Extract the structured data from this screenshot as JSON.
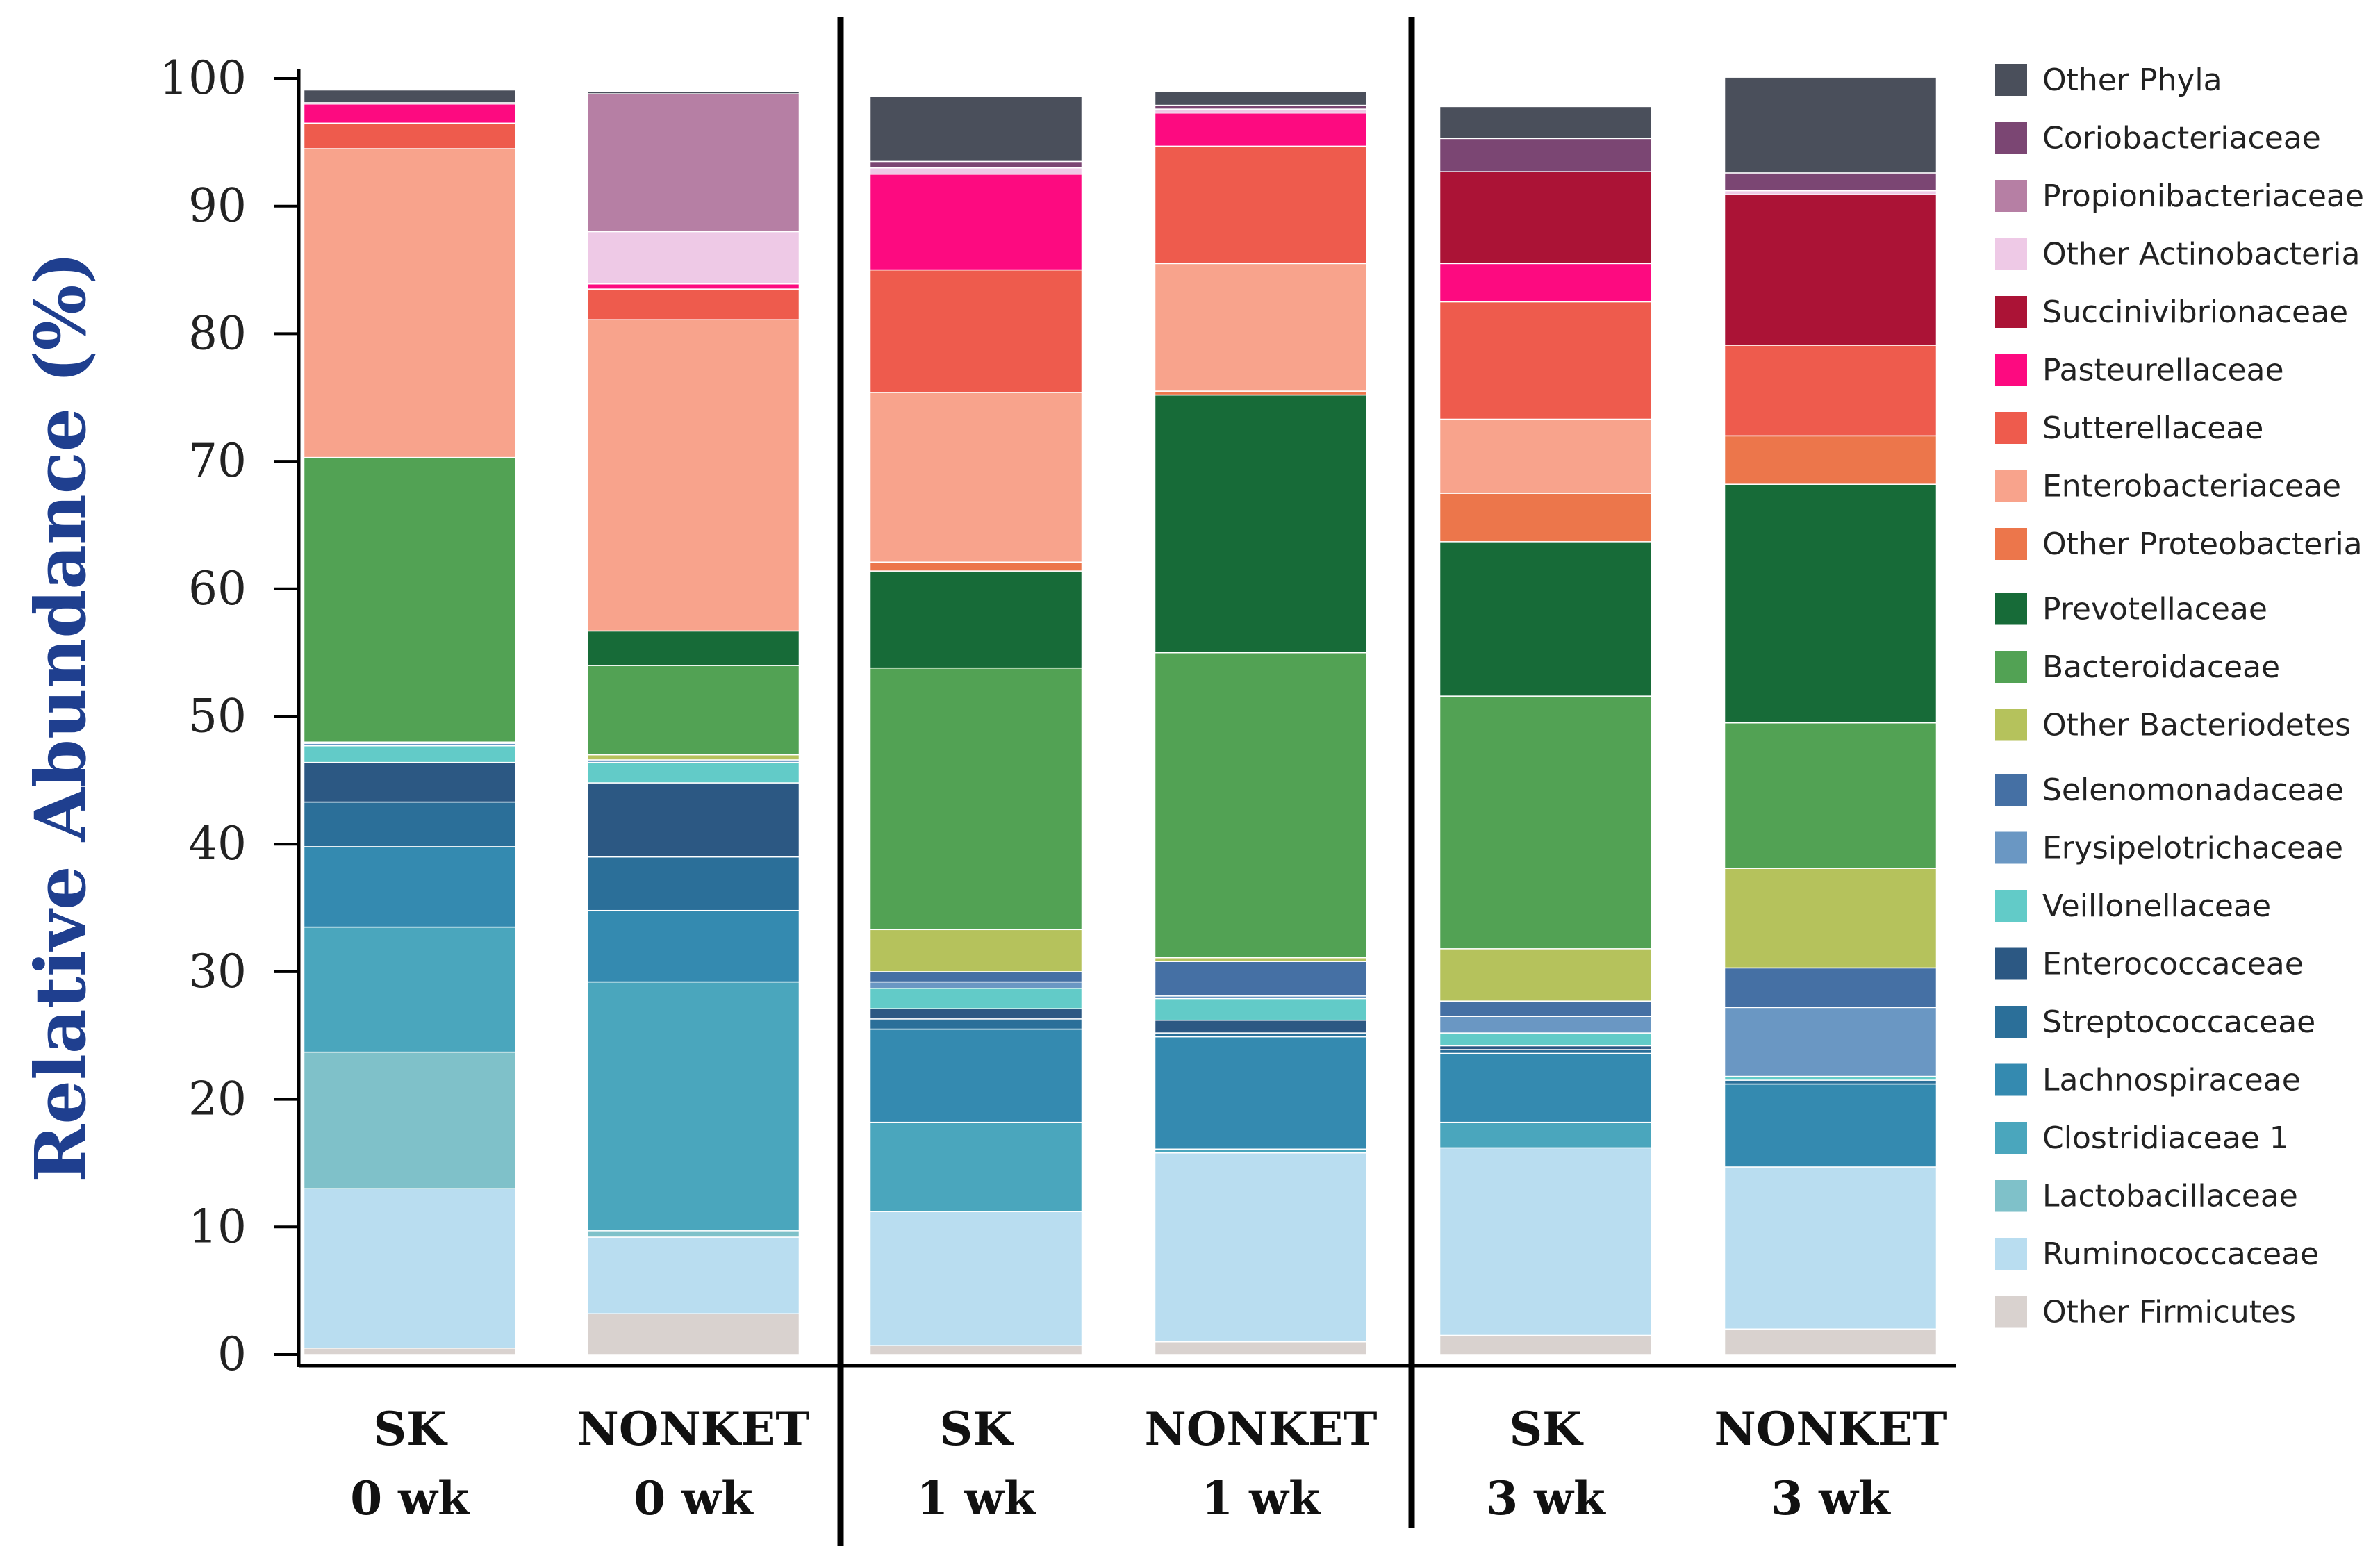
{
  "chart_data": {
    "type": "bar",
    "stacked": true,
    "title": "",
    "xlabel": "",
    "ylabel": "Relative Abundance (%)",
    "ylim": [
      0,
      100
    ],
    "yticks": [
      "0",
      "10",
      "20",
      "30",
      "40",
      "50",
      "60",
      "70",
      "80",
      "90",
      "100"
    ],
    "legend_position": "right",
    "categories": [
      {
        "group": "SK",
        "time": "0 wk"
      },
      {
        "group": "NONKET",
        "time": "0 wk"
      },
      {
        "group": "SK",
        "time": "1 wk"
      },
      {
        "group": "NONKET",
        "time": "1 wk"
      },
      {
        "group": "SK",
        "time": "3 wk"
      },
      {
        "group": "NONKET",
        "time": "3 wk"
      }
    ],
    "series": [
      {
        "name": "Other Firmicutes",
        "color": "#d9d2cf",
        "values": [
          0.5,
          3.2,
          0.7,
          1.0,
          1.5,
          2.0
        ]
      },
      {
        "name": "Ruminococcaceae",
        "color": "#b9ddf0",
        "values": [
          12.5,
          6.0,
          10.5,
          14.8,
          14.7,
          12.7
        ]
      },
      {
        "name": "Lactobacillaceae",
        "color": "#7fc1c9",
        "values": [
          10.7,
          0.5,
          0.0,
          0.0,
          0.0,
          0.0
        ]
      },
      {
        "name": "Clostridiaceae 1",
        "color": "#4aa6bd",
        "values": [
          9.8,
          19.5,
          7.0,
          0.3,
          2.0,
          0.0
        ]
      },
      {
        "name": "Lachnospiraceae",
        "color": "#348ab0",
        "values": [
          6.3,
          5.6,
          7.3,
          8.8,
          5.4,
          6.5
        ]
      },
      {
        "name": "Streptococcaceae",
        "color": "#2b6f99",
        "values": [
          3.5,
          4.2,
          0.8,
          0.3,
          0.3,
          0.3
        ]
      },
      {
        "name": "Enterococcaceae",
        "color": "#2c5883",
        "values": [
          3.1,
          5.8,
          0.8,
          1.0,
          0.3,
          0.0
        ]
      },
      {
        "name": "Veillonellaceae",
        "color": "#62cbc8",
        "values": [
          1.3,
          1.6,
          1.6,
          1.7,
          1.0,
          0.3
        ]
      },
      {
        "name": "Erysipelotrichaceae",
        "color": "#6a97c3",
        "values": [
          0.2,
          0.2,
          0.5,
          0.2,
          1.3,
          5.4
        ]
      },
      {
        "name": "Selenomonadaceae",
        "color": "#4570a4",
        "values": [
          0.1,
          0.0,
          0.8,
          2.7,
          1.2,
          3.1
        ]
      },
      {
        "name": "Other Bacteriodetes",
        "color": "#b5c25c",
        "values": [
          0.0,
          0.4,
          3.3,
          0.3,
          4.1,
          7.8
        ]
      },
      {
        "name": "Bacteroidaceae",
        "color": "#52a254",
        "values": [
          22.3,
          7.0,
          20.5,
          23.9,
          19.8,
          11.4
        ]
      },
      {
        "name": "Prevotellaceae",
        "color": "#176b38",
        "values": [
          0.0,
          2.7,
          7.6,
          20.2,
          12.1,
          18.7
        ]
      },
      {
        "name": "Other Proteobacteria",
        "color": "#ec764b",
        "values": [
          0.0,
          0.0,
          0.7,
          0.3,
          3.8,
          3.8
        ]
      },
      {
        "name": "Enterobacteriaceae",
        "color": "#f8a38c",
        "values": [
          24.2,
          24.4,
          13.3,
          10.0,
          5.8,
          0.0
        ]
      },
      {
        "name": "Sutterellaceae",
        "color": "#ee5b4d",
        "values": [
          2.0,
          2.4,
          9.6,
          9.2,
          9.2,
          7.1
        ]
      },
      {
        "name": "Pasteurellaceae",
        "color": "#fd0a80",
        "values": [
          1.5,
          0.4,
          7.5,
          2.6,
          3.0,
          0.0
        ]
      },
      {
        "name": "Succinivibrionaceae",
        "color": "#ab1336",
        "values": [
          0.0,
          0.0,
          0.0,
          0.0,
          7.2,
          11.8
        ]
      },
      {
        "name": "Other Actinobacteria",
        "color": "#eec9e6",
        "values": [
          0.0,
          4.1,
          0.5,
          0.3,
          0.0,
          0.3
        ]
      },
      {
        "name": "Propionibacteriaceae",
        "color": "#b67fa4",
        "values": [
          0.1,
          10.8,
          0.0,
          0.0,
          0.0,
          0.0
        ]
      },
      {
        "name": "Coriobacteriaceae",
        "color": "#7b4673",
        "values": [
          0.0,
          0.0,
          0.5,
          0.3,
          2.6,
          1.4
        ]
      },
      {
        "name": "Other Phyla",
        "color": "#4a4f5b",
        "values": [
          1.0,
          0.2,
          5.1,
          1.1,
          2.5,
          7.5
        ]
      }
    ],
    "legend_order": [
      "Other Phyla",
      "Coriobacteriaceae",
      "Propionibacteriaceae",
      "Other Actinobacteria",
      "Succinivibrionaceae",
      "Pasteurellaceae",
      "Sutterellaceae",
      "Enterobacteriaceae",
      "Other Proteobacteria",
      "Prevotellaceae",
      "Bacteroidaceae",
      "Other Bacteriodetes",
      "Selenomonadaceae",
      "Erysipelotrichaceae",
      "Veillonellaceae",
      "Enterococcaceae",
      "Streptococcaceae",
      "Lachnospiraceae",
      "Clostridiaceae 1",
      "Lactobacillaceae",
      "Ruminococcaceae",
      "Other Firmicutes"
    ],
    "grid": false
  }
}
